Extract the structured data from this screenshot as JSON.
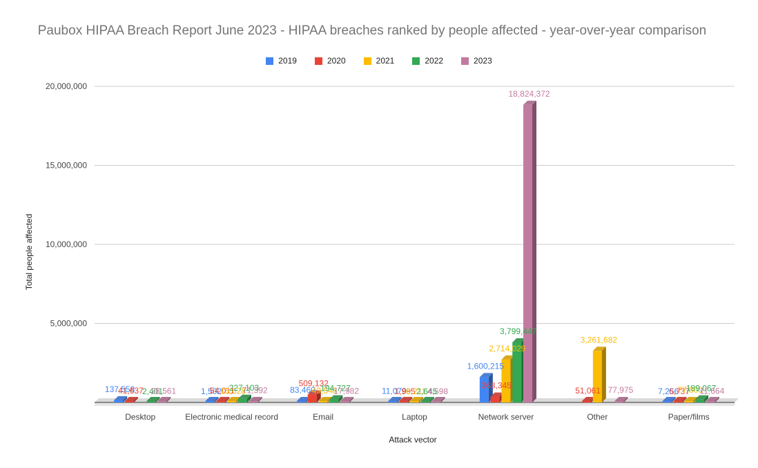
{
  "chart_data": {
    "type": "bar",
    "title": "Paubox HIPAA Breach Report June 2023 - HIPAA breaches ranked by people affected - year-over-year comparison",
    "xlabel": "Attack vector",
    "ylabel": "Total people affected",
    "ylim": [
      0,
      20000000
    ],
    "yticks": [
      "5,000,000",
      "10,000,000",
      "15,000,000",
      "20,000,000"
    ],
    "ytick_values": [
      5000000,
      10000000,
      15000000,
      20000000
    ],
    "legend_position": "top",
    "grid": true,
    "categories": [
      "Desktop",
      "Electronic medical record",
      "Email",
      "Laptop",
      "Network server",
      "Other",
      "Paper/films"
    ],
    "series": [
      {
        "name": "2019",
        "color": "#4285f4",
        "values": [
          137558,
          1502,
          83460,
          11079,
          1600215,
          0,
          7256
        ],
        "labels": [
          "137,558",
          "1,502",
          "83,460",
          "11,079",
          "1,600,215",
          "",
          "7,256"
        ]
      },
      {
        "name": "2020",
        "color": "#ea4335",
        "values": [
          41637,
          54011,
          509132,
          1995,
          368345,
          51061,
          6737
        ],
        "labels": [
          "41,637",
          "54,011",
          "509,132",
          "1,995",
          "368,345",
          "51,061",
          "6,737"
        ]
      },
      {
        "name": "2021",
        "color": "#fbbc04",
        "values": [
          0,
          15628,
          49548,
          6211,
          2714029,
          3261682,
          77000
        ],
        "labels": [
          "",
          "15,628",
          "49,548",
          "6,211",
          "2,714,029",
          "3,261,682",
          "77,000"
        ]
      },
      {
        "name": "2022",
        "color": "#34a853",
        "values": [
          2401,
          227103,
          194727,
          2645,
          3799447,
          0,
          189067
        ],
        "labels": [
          "2,401",
          "227,103",
          "194,727",
          "2,645",
          "3,799,447",
          "",
          "189,067"
        ]
      },
      {
        "name": "2023",
        "color": "#c27ba0",
        "values": [
          26561,
          71392,
          17982,
          4598,
          18824372,
          77975,
          11664
        ],
        "labels": [
          "26,561",
          "71,392",
          "17,982",
          "4,598",
          "18,824,372",
          "77,975",
          "11,664"
        ]
      }
    ]
  }
}
